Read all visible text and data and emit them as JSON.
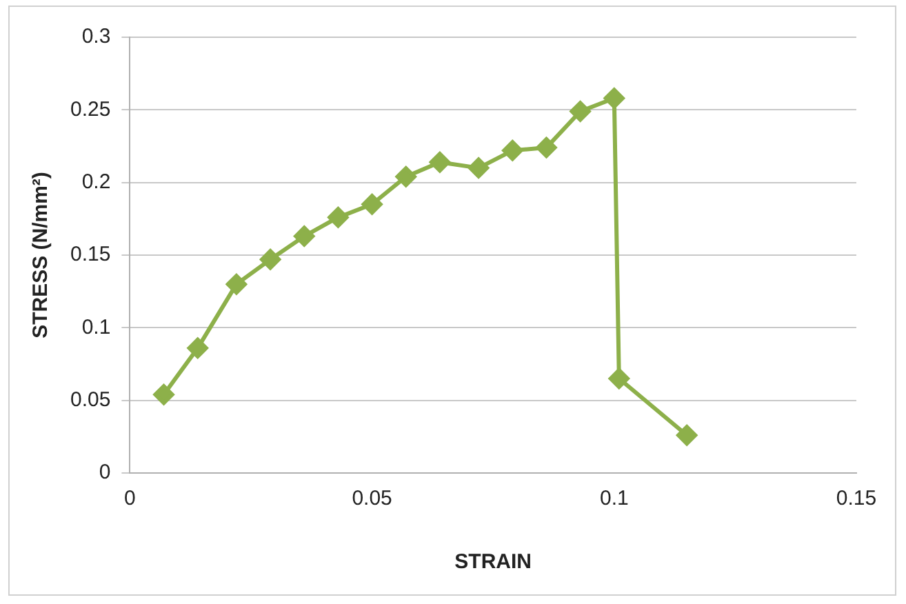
{
  "chart_data": {
    "type": "line",
    "xlabel": "STRAIN",
    "ylabel": "STRESS (N/mm²)",
    "x": [
      0.007,
      0.014,
      0.022,
      0.029,
      0.036,
      0.043,
      0.05,
      0.057,
      0.064,
      0.072,
      0.079,
      0.086,
      0.093,
      0.1,
      0.101,
      0.115
    ],
    "series": [
      {
        "color": "#8db04a",
        "values": [
          0.054,
          0.086,
          0.13,
          0.147,
          0.163,
          0.176,
          0.185,
          0.204,
          0.214,
          0.21,
          0.222,
          0.224,
          0.249,
          0.258,
          0.065,
          0.026
        ]
      }
    ],
    "xlim": [
      0,
      0.15
    ],
    "xticks": [
      0,
      0.05,
      0.1,
      0.15
    ],
    "ylim": [
      0,
      0.3
    ],
    "yticks": [
      0,
      0.05,
      0.1,
      0.15,
      0.2,
      0.25,
      0.3
    ],
    "grid": "y",
    "legend": false,
    "marker": "diamond",
    "line_style": "solid"
  }
}
